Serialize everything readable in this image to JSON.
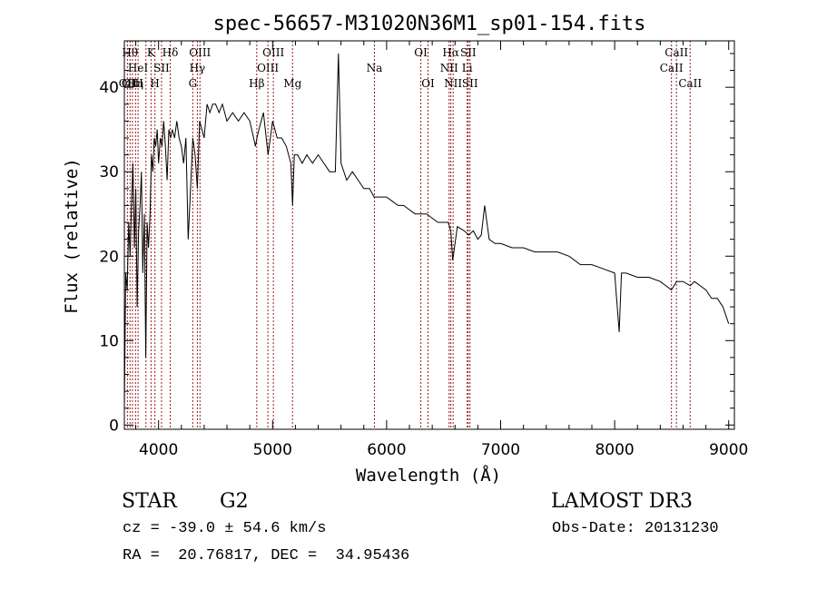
{
  "chart_data": {
    "type": "line",
    "title": "spec-56657-M31020N36M1_sp01-154.fits",
    "xlabel": "Wavelength (Å)",
    "ylabel": "Flux (relative)",
    "xlim": [
      3700,
      9050
    ],
    "ylim": [
      -0.5,
      45.5
    ],
    "xticks": [
      4000,
      5000,
      6000,
      7000,
      8000,
      9000
    ],
    "yticks": [
      0,
      10,
      20,
      30,
      40
    ],
    "series": [
      {
        "name": "spectrum",
        "x": [
          3700,
          3712,
          3725,
          3738,
          3750,
          3762,
          3775,
          3788,
          3800,
          3812,
          3825,
          3838,
          3850,
          3862,
          3875,
          3888,
          3900,
          3912,
          3925,
          3938,
          3950,
          3962,
          3975,
          3988,
          4000,
          4015,
          4030,
          4045,
          4060,
          4075,
          4090,
          4105,
          4120,
          4140,
          4160,
          4180,
          4200,
          4220,
          4240,
          4260,
          4280,
          4300,
          4320,
          4340,
          4360,
          4380,
          4400,
          4425,
          4450,
          4475,
          4500,
          4530,
          4560,
          4600,
          4650,
          4700,
          4750,
          4800,
          4850,
          4862,
          4880,
          4920,
          4960,
          5000,
          5040,
          5080,
          5120,
          5160,
          5175,
          5190,
          5220,
          5260,
          5300,
          5350,
          5400,
          5450,
          5500,
          5550,
          5577,
          5600,
          5650,
          5700,
          5750,
          5800,
          5850,
          5890,
          5920,
          5950,
          6000,
          6050,
          6100,
          6150,
          6200,
          6250,
          6300,
          6350,
          6400,
          6450,
          6500,
          6540,
          6563,
          6580,
          6620,
          6680,
          6720,
          6760,
          6800,
          6830,
          6860,
          6900,
          6950,
          7000,
          7100,
          7200,
          7300,
          7400,
          7500,
          7600,
          7700,
          7750,
          7800,
          7900,
          8000,
          8040,
          8060,
          8100,
          8200,
          8300,
          8400,
          8498,
          8542,
          8600,
          8662,
          8700,
          8800,
          8850,
          8900,
          8950,
          9000
        ],
        "values": [
          2,
          18,
          16,
          24,
          20,
          26,
          31,
          21,
          28,
          14,
          23,
          26,
          30,
          18,
          25,
          8,
          24,
          21,
          25,
          32,
          30,
          34,
          33,
          35,
          31,
          34,
          33,
          36,
          33,
          29,
          35,
          34,
          35,
          34,
          36,
          34,
          33,
          31,
          34,
          22,
          28,
          34,
          32,
          28,
          36,
          35,
          34,
          38,
          37,
          38,
          38,
          37,
          38,
          36,
          37,
          36,
          37,
          36,
          33,
          34,
          35,
          37,
          32,
          36,
          34,
          34,
          33,
          31,
          26,
          32,
          32,
          31,
          32,
          31,
          32,
          31,
          30,
          30,
          44,
          31,
          29,
          30,
          29,
          28,
          28,
          27,
          27,
          27,
          27,
          26.5,
          26,
          26,
          25.5,
          25,
          25,
          25,
          24.5,
          24,
          24,
          24,
          23,
          19.5,
          23.5,
          23,
          22.5,
          23,
          22,
          22.5,
          26,
          22,
          21.5,
          21.5,
          21,
          21,
          20.5,
          20.5,
          20.5,
          20,
          19,
          19,
          19,
          18.5,
          18,
          11,
          18,
          18,
          17.5,
          17.5,
          17,
          16,
          17,
          17,
          16.5,
          17,
          16,
          15,
          15,
          14,
          12
        ]
      }
    ],
    "lines": [
      {
        "wl": 3727,
        "label": "OII",
        "row": 3
      },
      {
        "wl": 3750,
        "label": "Hθ",
        "row": 1
      },
      {
        "wl": 3771,
        "label": "OIII",
        "row": 3
      },
      {
        "wl": 3798,
        "label": "Hη",
        "row": 3
      },
      {
        "wl": 3820,
        "label": "HeI",
        "row": 2
      },
      {
        "wl": 3889,
        "label": "",
        "row": 0
      },
      {
        "wl": 3934,
        "label": "K",
        "row": 1
      },
      {
        "wl": 3968,
        "label": "H",
        "row": 3
      },
      {
        "wl": 4026,
        "label": "SII",
        "row": 2
      },
      {
        "wl": 4102,
        "label": "Hδ",
        "row": 1
      },
      {
        "wl": 4300,
        "label": "G",
        "row": 3
      },
      {
        "wl": 4340,
        "label": "Hγ",
        "row": 2
      },
      {
        "wl": 4363,
        "label": "OIII",
        "row": 1
      },
      {
        "wl": 4861,
        "label": "Hβ",
        "row": 3
      },
      {
        "wl": 4959,
        "label": "OIII",
        "row": 2
      },
      {
        "wl": 5007,
        "label": "OIII",
        "row": 1
      },
      {
        "wl": 5175,
        "label": "Mg",
        "row": 3
      },
      {
        "wl": 5893,
        "label": "Na",
        "row": 2
      },
      {
        "wl": 6300,
        "label": "OI",
        "row": 1
      },
      {
        "wl": 6363,
        "label": "OI",
        "row": 3
      },
      {
        "wl": 6548,
        "label": "NII",
        "row": 2
      },
      {
        "wl": 6563,
        "label": "Hα",
        "row": 1
      },
      {
        "wl": 6583,
        "label": "NII",
        "row": 3
      },
      {
        "wl": 6707,
        "label": "Li",
        "row": 2
      },
      {
        "wl": 6716,
        "label": "SII",
        "row": 1
      },
      {
        "wl": 6731,
        "label": "SII",
        "row": 3
      },
      {
        "wl": 8498,
        "label": "CaII",
        "row": 2
      },
      {
        "wl": 8542,
        "label": "CaII",
        "row": 1
      },
      {
        "wl": 8662,
        "label": "CaII",
        "row": 3
      }
    ],
    "colors": {
      "line": "#000000",
      "marker": "#9b1b1b",
      "axes": "#000000"
    }
  },
  "info": {
    "class": "STAR",
    "subclass": "G2",
    "survey": "LAMOST DR3",
    "cz": "cz = -39.0 ± 54.6 km/s",
    "obs_date": "Obs-Date: 20131230",
    "radec": "RA =  20.76817, DEC =  34.95436"
  }
}
